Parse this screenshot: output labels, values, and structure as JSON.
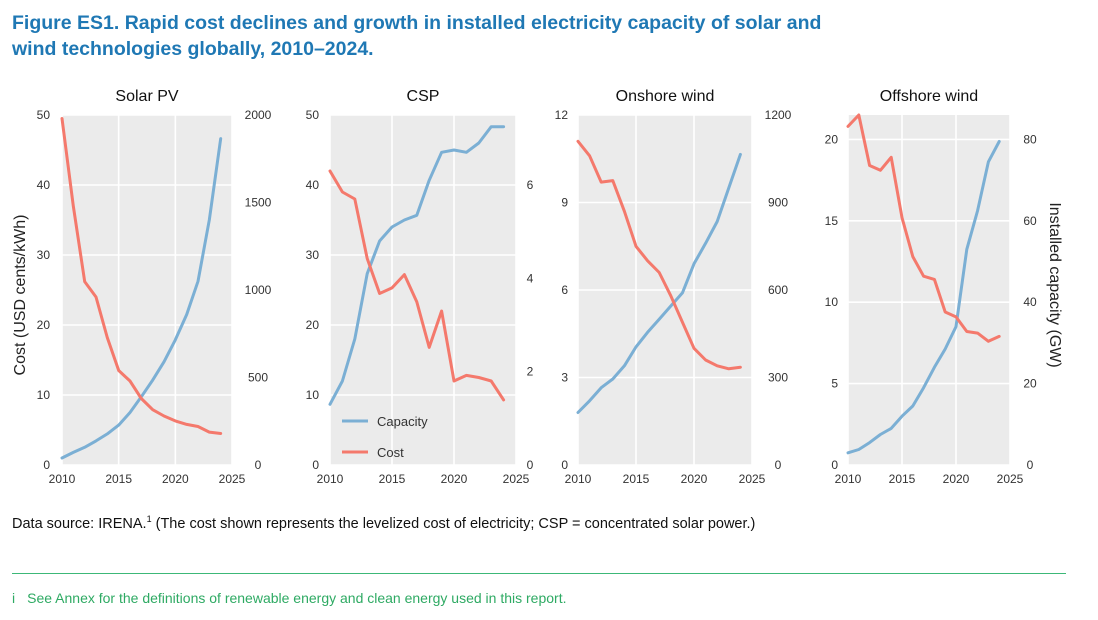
{
  "figure": {
    "title_line1": "Figure ES1. Rapid cost declines and growth in installed electricity capacity of solar and",
    "title_line2": "wind technologies globally, 2010–2024."
  },
  "source_text": "Data source: IRENA.",
  "source_sup": "1",
  "source_note": " (The cost shown represents the levelized cost of electricity; CSP = concentrated solar power.)",
  "footnote": {
    "mark": "i",
    "text": "See Annex for the definitions of renewable energy and clean energy used in this report."
  },
  "colors": {
    "capacity": "#7bafd4",
    "cost": "#f4796c",
    "title": "#1f78b4",
    "plot_bg": "#ebebeb",
    "footnote": "#2eaa63"
  },
  "chart_data": [
    {
      "type": "line",
      "title": "Solar PV",
      "ylabel": "Cost (USD cents/kWh)",
      "y2label": "",
      "xlim": [
        2010,
        2025
      ],
      "xticks": [
        2010,
        2015,
        2020,
        2025
      ],
      "ylim": [
        0,
        50
      ],
      "yticks": [
        0,
        10,
        20,
        30,
        40,
        50
      ],
      "y2lim": [
        0,
        2000
      ],
      "y2ticks": [
        0,
        500,
        1000,
        1500,
        2000
      ],
      "series": [
        {
          "name": "Capacity",
          "axis": "right",
          "x": [
            2010,
            2011,
            2012,
            2013,
            2014,
            2015,
            2016,
            2017,
            2018,
            2019,
            2020,
            2021,
            2022,
            2023,
            2024
          ],
          "values": [
            40,
            72,
            101,
            138,
            178,
            228,
            300,
            390,
            485,
            590,
            715,
            860,
            1050,
            1400,
            1865
          ]
        },
        {
          "name": "Cost",
          "axis": "left",
          "x": [
            2010,
            2011,
            2012,
            2013,
            2014,
            2015,
            2016,
            2017,
            2018,
            2019,
            2020,
            2021,
            2022,
            2023,
            2024
          ],
          "values": [
            49.5,
            37,
            26.2,
            24,
            18.2,
            13.5,
            12,
            9.5,
            7.9,
            7,
            6.3,
            5.8,
            5.5,
            4.7,
            4.5
          ]
        }
      ]
    },
    {
      "type": "line",
      "title": "CSP",
      "ylabel": "",
      "y2label": "",
      "xlim": [
        2010,
        2025
      ],
      "xticks": [
        2010,
        2015,
        2020,
        2025
      ],
      "ylim": [
        0,
        50
      ],
      "yticks": [
        0,
        10,
        20,
        30,
        40,
        50
      ],
      "y2lim": [
        0,
        7.5
      ],
      "y2ticks": [
        0,
        2,
        4,
        6
      ],
      "series": [
        {
          "name": "Capacity",
          "axis": "right",
          "x": [
            2010,
            2011,
            2012,
            2013,
            2014,
            2015,
            2016,
            2017,
            2018,
            2019,
            2020,
            2021,
            2022,
            2023,
            2024
          ],
          "values": [
            1.3,
            1.8,
            2.7,
            4.1,
            4.8,
            5.1,
            5.25,
            5.35,
            6.1,
            6.7,
            6.75,
            6.7,
            6.9,
            7.25,
            7.25
          ]
        },
        {
          "name": "Cost",
          "axis": "left",
          "x": [
            2010,
            2011,
            2012,
            2013,
            2014,
            2015,
            2016,
            2017,
            2018,
            2019,
            2020,
            2021,
            2022,
            2023,
            2024
          ],
          "values": [
            42,
            39,
            38,
            29.5,
            24.5,
            25.3,
            27.2,
            23.3,
            16.8,
            22,
            12,
            12.8,
            12.5,
            12,
            9.3
          ]
        }
      ],
      "legend": {
        "position": "bottom-right",
        "entries": [
          "Capacity",
          "Cost"
        ]
      }
    },
    {
      "type": "line",
      "title": "Onshore wind",
      "ylabel": "",
      "y2label": "",
      "xlim": [
        2010,
        2025
      ],
      "xticks": [
        2010,
        2015,
        2020,
        2025
      ],
      "ylim": [
        0,
        12
      ],
      "yticks": [
        0,
        3,
        6,
        9,
        12
      ],
      "y2lim": [
        0,
        1200
      ],
      "y2ticks": [
        0,
        300,
        600,
        900,
        1200
      ],
      "series": [
        {
          "name": "Capacity",
          "axis": "right",
          "x": [
            2010,
            2011,
            2012,
            2013,
            2014,
            2015,
            2016,
            2017,
            2018,
            2019,
            2020,
            2021,
            2022,
            2023,
            2024
          ],
          "values": [
            180,
            220,
            265,
            295,
            340,
            405,
            455,
            500,
            545,
            590,
            690,
            760,
            835,
            950,
            1065
          ]
        },
        {
          "name": "Cost",
          "axis": "left",
          "x": [
            2010,
            2011,
            2012,
            2013,
            2014,
            2015,
            2016,
            2017,
            2018,
            2019,
            2020,
            2021,
            2022,
            2023,
            2024
          ],
          "values": [
            11.1,
            10.6,
            9.7,
            9.75,
            8.7,
            7.5,
            7,
            6.6,
            5.8,
            4.9,
            4,
            3.6,
            3.4,
            3.3,
            3.35
          ]
        }
      ]
    },
    {
      "type": "line",
      "title": "Offshore wind",
      "ylabel": "",
      "y2label": "Installed capacity (GW)",
      "xlim": [
        2010,
        2025
      ],
      "xticks": [
        2010,
        2015,
        2020,
        2025
      ],
      "ylim": [
        0,
        21.5
      ],
      "yticks": [
        0,
        5,
        10,
        15,
        20
      ],
      "y2lim": [
        0,
        86
      ],
      "y2ticks": [
        0,
        20,
        40,
        60,
        80
      ],
      "series": [
        {
          "name": "Capacity",
          "axis": "right",
          "x": [
            2010,
            2011,
            2012,
            2013,
            2014,
            2015,
            2016,
            2017,
            2018,
            2019,
            2020,
            2021,
            2022,
            2023,
            2024
          ],
          "values": [
            3,
            3.8,
            5.5,
            7.5,
            9,
            12,
            14.5,
            19,
            24,
            28.5,
            34,
            53,
            62.5,
            74.5,
            79.5
          ]
        },
        {
          "name": "Cost",
          "axis": "left",
          "x": [
            2010,
            2011,
            2012,
            2013,
            2014,
            2015,
            2016,
            2017,
            2018,
            2019,
            2020,
            2021,
            2022,
            2023,
            2024
          ],
          "values": [
            20.8,
            21.5,
            18.4,
            18.1,
            18.9,
            15.2,
            12.8,
            11.6,
            11.4,
            9.4,
            9.1,
            8.2,
            8.1,
            7.6,
            7.9
          ]
        }
      ]
    }
  ]
}
